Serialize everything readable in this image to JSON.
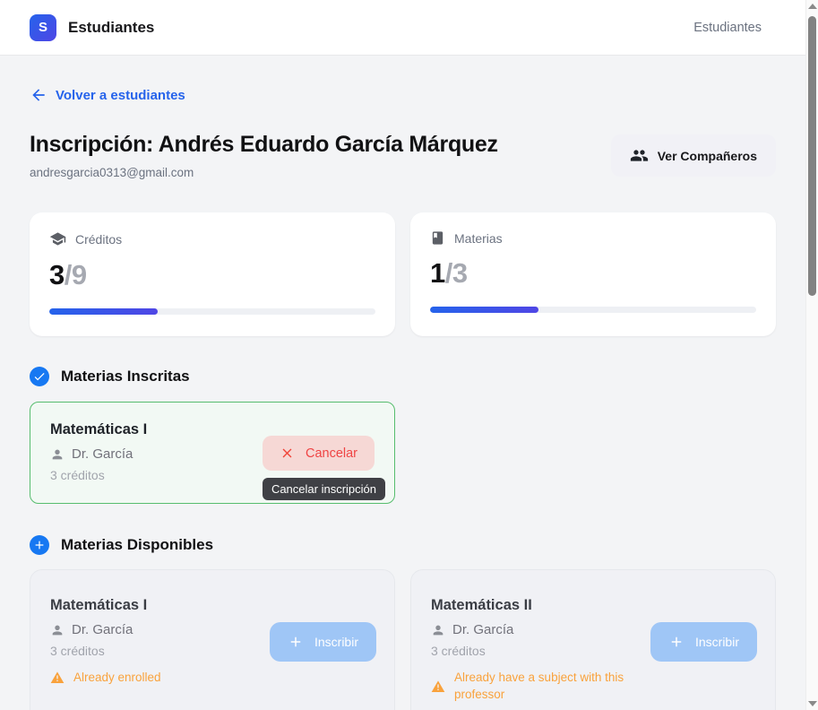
{
  "header": {
    "logo_letter": "S",
    "app_title": "Estudiantes",
    "nav_right": "Estudiantes"
  },
  "back_link": {
    "label": "Volver a estudiantes"
  },
  "student": {
    "title": "Inscripción: Andrés Eduardo García Márquez",
    "email": "andresgarcia0313@gmail.com",
    "view_peers_label": "Ver Compañeros"
  },
  "stats": {
    "credits": {
      "label": "Créditos",
      "value": "3",
      "max_display": "/9",
      "percent": 33.3
    },
    "subjects": {
      "label": "Materias",
      "value": "1",
      "max_display": "/3",
      "percent": 33.3
    }
  },
  "enrolled_section": {
    "title": "Materias Inscritas",
    "card": {
      "name": "Matemáticas I",
      "professor": "Dr. García",
      "credits": "3 créditos",
      "cancel_label": "Cancelar",
      "tooltip": "Cancelar inscripción"
    }
  },
  "available_section": {
    "title": "Materias Disponibles",
    "items": [
      {
        "name": "Matemáticas I",
        "professor": "Dr. García",
        "credits": "3 créditos",
        "warning": "Already enrolled",
        "enroll_label": "Inscribir"
      },
      {
        "name": "Matemáticas II",
        "professor": "Dr. García",
        "credits": "3 créditos",
        "warning": "Already have a subject with this professor",
        "enroll_label": "Inscribir"
      }
    ]
  },
  "colors": {
    "accent_blue": "#1778f2",
    "brand_gradient_start": "#2563eb",
    "brand_gradient_end": "#4f46e5",
    "link_blue": "#2563eb",
    "enrolled_green_border": "#57bd6e",
    "danger_red": "#ef4444",
    "cancel_bg": "#f6d8d5",
    "warning_orange": "#f9a23c",
    "enroll_btn_bg": "#9fc6f6",
    "tooltip_bg": "#3f4045"
  }
}
